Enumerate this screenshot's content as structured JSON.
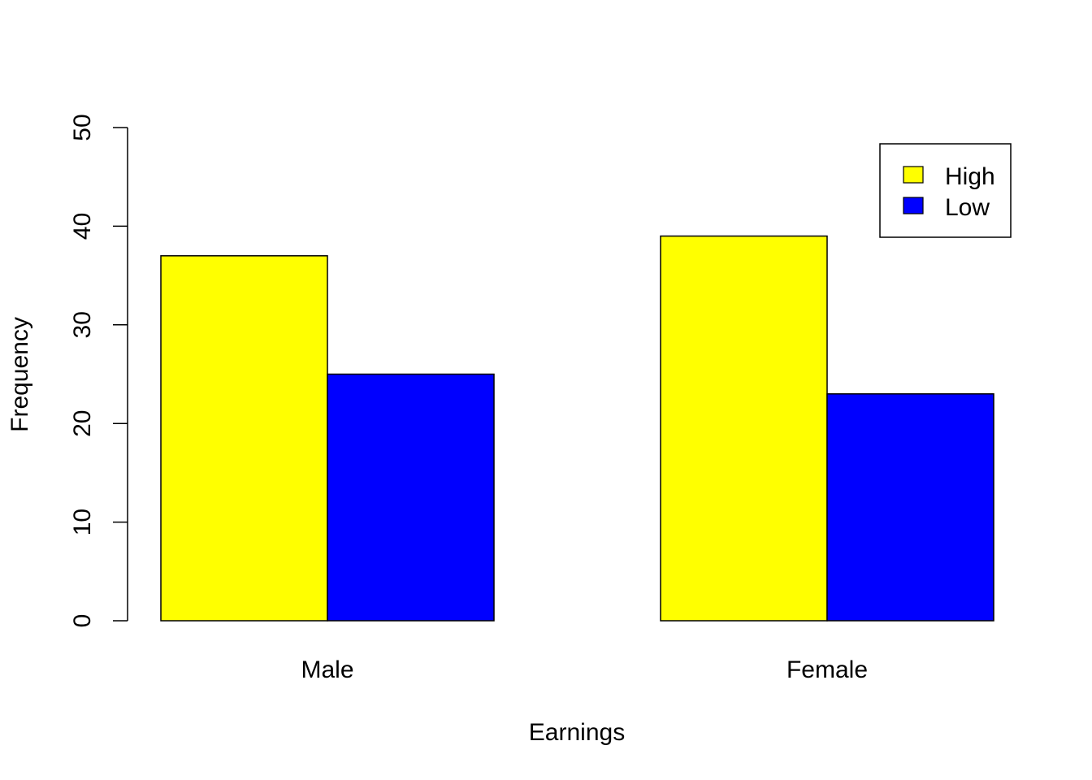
{
  "chart_data": {
    "type": "bar",
    "title": "",
    "xlabel": "Earnings",
    "ylabel": "Frequency",
    "ylim": [
      0,
      50
    ],
    "yticks": [
      0,
      10,
      20,
      30,
      40,
      50
    ],
    "categories": [
      "Male",
      "Female"
    ],
    "series": [
      {
        "name": "High",
        "color": "#ffff00",
        "values": [
          37,
          39
        ]
      },
      {
        "name": "Low",
        "color": "#0000ff",
        "values": [
          25,
          23
        ]
      }
    ],
    "legend_position": "top-right",
    "grid": false
  }
}
